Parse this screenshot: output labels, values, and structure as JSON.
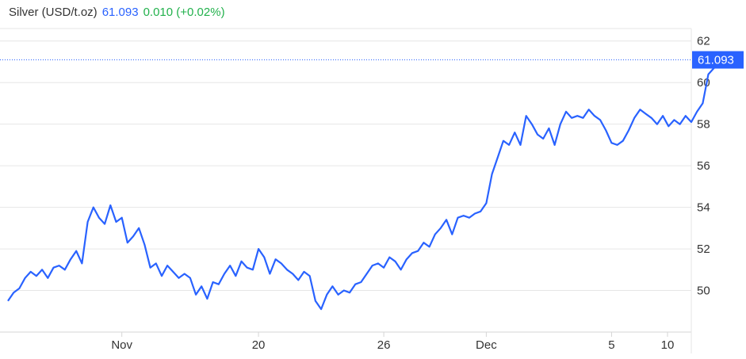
{
  "header": {
    "title": "Silver (USD/t.oz)",
    "price": "61.093",
    "change": "0.010 (+0.02%)"
  },
  "colors": {
    "line": "#2962ff",
    "price": "#2962ff",
    "change": "#22b14c",
    "grid": "#e6e6e6",
    "tag_bg": "#2962ff"
  },
  "chart_data": {
    "type": "line",
    "title": "Silver (USD/t.oz)",
    "xlabel": "",
    "ylabel": "",
    "ylim": [
      48,
      62.6
    ],
    "xlim": [
      0,
      120
    ],
    "yticks": [
      50,
      52,
      54,
      56,
      58,
      60,
      62
    ],
    "xticks": [
      {
        "x": 20,
        "label": "Nov"
      },
      {
        "x": 44,
        "label": "20"
      },
      {
        "x": 66,
        "label": "26"
      },
      {
        "x": 84,
        "label": "Dec"
      },
      {
        "x": 106,
        "label": "5"
      },
      {
        "x": 123,
        "label": "10"
      }
    ],
    "last_value": 61.093,
    "last_label": "61.093",
    "grid": true,
    "y_axis_position": "right",
    "series": [
      {
        "values": [
          [
            0,
            49.5
          ],
          [
            1,
            49.9
          ],
          [
            2,
            50.1
          ],
          [
            3,
            50.6
          ],
          [
            4,
            50.9
          ],
          [
            5,
            50.7
          ],
          [
            6,
            51.0
          ],
          [
            7,
            50.6
          ],
          [
            8,
            51.1
          ],
          [
            9,
            51.2
          ],
          [
            10,
            51.0
          ],
          [
            11,
            51.5
          ],
          [
            12,
            51.9
          ],
          [
            13,
            51.3
          ],
          [
            14,
            53.3
          ],
          [
            15,
            54.0
          ],
          [
            16,
            53.5
          ],
          [
            17,
            53.2
          ],
          [
            18,
            54.1
          ],
          [
            19,
            53.3
          ],
          [
            20,
            53.5
          ],
          [
            21,
            52.3
          ],
          [
            22,
            52.6
          ],
          [
            23,
            53.0
          ],
          [
            24,
            52.2
          ],
          [
            25,
            51.1
          ],
          [
            26,
            51.3
          ],
          [
            27,
            50.7
          ],
          [
            28,
            51.2
          ],
          [
            29,
            50.9
          ],
          [
            30,
            50.6
          ],
          [
            31,
            50.8
          ],
          [
            32,
            50.6
          ],
          [
            33,
            49.8
          ],
          [
            34,
            50.2
          ],
          [
            35,
            49.6
          ],
          [
            36,
            50.4
          ],
          [
            37,
            50.3
          ],
          [
            38,
            50.8
          ],
          [
            39,
            51.2
          ],
          [
            40,
            50.7
          ],
          [
            41,
            51.4
          ],
          [
            42,
            51.1
          ],
          [
            43,
            51.0
          ],
          [
            44,
            52.0
          ],
          [
            45,
            51.6
          ],
          [
            46,
            50.8
          ],
          [
            47,
            51.5
          ],
          [
            48,
            51.3
          ],
          [
            49,
            51.0
          ],
          [
            50,
            50.8
          ],
          [
            51,
            50.5
          ],
          [
            52,
            50.9
          ],
          [
            53,
            50.7
          ],
          [
            54,
            49.5
          ],
          [
            55,
            49.1
          ],
          [
            56,
            49.8
          ],
          [
            57,
            50.2
          ],
          [
            58,
            49.8
          ],
          [
            59,
            50.0
          ],
          [
            60,
            49.9
          ],
          [
            61,
            50.3
          ],
          [
            62,
            50.4
          ],
          [
            63,
            50.8
          ],
          [
            64,
            51.2
          ],
          [
            65,
            51.3
          ],
          [
            66,
            51.1
          ],
          [
            67,
            51.6
          ],
          [
            68,
            51.4
          ],
          [
            69,
            51.0
          ],
          [
            70,
            51.5
          ],
          [
            71,
            51.8
          ],
          [
            72,
            51.9
          ],
          [
            73,
            52.3
          ],
          [
            74,
            52.1
          ],
          [
            75,
            52.7
          ],
          [
            76,
            53.0
          ],
          [
            77,
            53.4
          ],
          [
            78,
            52.7
          ],
          [
            79,
            53.5
          ],
          [
            80,
            53.6
          ],
          [
            81,
            53.5
          ],
          [
            82,
            53.7
          ],
          [
            83,
            53.8
          ],
          [
            84,
            54.2
          ],
          [
            85,
            55.6
          ],
          [
            86,
            56.4
          ],
          [
            87,
            57.2
          ],
          [
            88,
            57.0
          ],
          [
            89,
            57.6
          ],
          [
            90,
            57.0
          ],
          [
            91,
            58.4
          ],
          [
            92,
            58.0
          ],
          [
            93,
            57.5
          ],
          [
            94,
            57.3
          ],
          [
            95,
            57.8
          ],
          [
            96,
            57.0
          ],
          [
            97,
            58.0
          ],
          [
            98,
            58.6
          ],
          [
            99,
            58.3
          ],
          [
            100,
            58.4
          ],
          [
            101,
            58.3
          ],
          [
            102,
            58.7
          ],
          [
            103,
            58.4
          ],
          [
            104,
            58.2
          ],
          [
            105,
            57.7
          ],
          [
            106,
            57.1
          ],
          [
            107,
            57.0
          ],
          [
            108,
            57.2
          ],
          [
            109,
            57.7
          ],
          [
            110,
            58.3
          ],
          [
            111,
            58.7
          ],
          [
            112,
            58.5
          ],
          [
            113,
            58.3
          ],
          [
            114,
            58.0
          ],
          [
            115,
            58.4
          ],
          [
            116,
            57.9
          ],
          [
            117,
            58.2
          ],
          [
            118,
            58.0
          ],
          [
            119,
            58.4
          ],
          [
            120,
            58.1
          ],
          [
            121,
            58.6
          ],
          [
            122,
            59.0
          ],
          [
            123,
            60.4
          ],
          [
            124,
            60.7
          ],
          [
            125,
            61.0
          ],
          [
            126,
            61.093
          ]
        ]
      }
    ]
  }
}
